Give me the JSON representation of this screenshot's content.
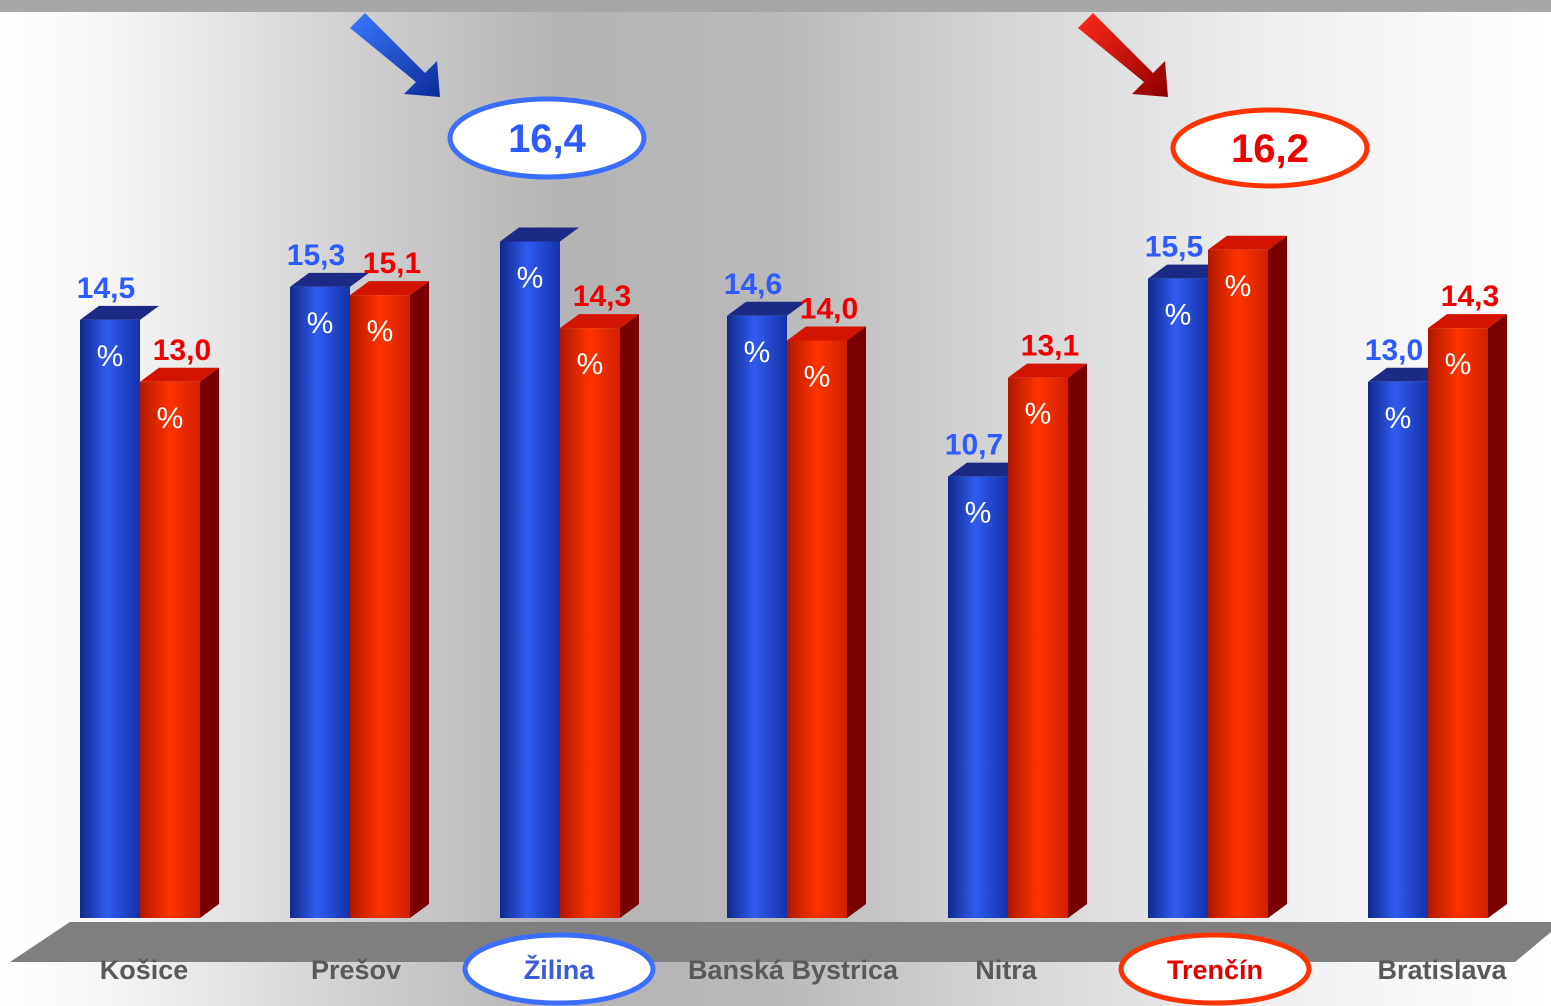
{
  "chart_data": {
    "type": "bar",
    "categories": [
      "Košice",
      "Prešov",
      "Žilina",
      "Banská Bystrica",
      "Nitra",
      "Trenčín",
      "Bratislava"
    ],
    "series": [
      {
        "values": [
          14.5,
          15.3,
          16.4,
          14.6,
          10.7,
          15.5,
          13.0
        ],
        "labels": [
          "14,5",
          "15,3",
          "16,4",
          "14,6",
          "10,7",
          "15,5",
          "13,0"
        ],
        "color": "#2546e0"
      },
      {
        "values": [
          13.0,
          15.1,
          14.3,
          14.0,
          13.1,
          16.2,
          14.3
        ],
        "labels": [
          "13,0",
          "15,1",
          "14,3",
          "14,0",
          "13,1",
          "16,2",
          "14,3"
        ],
        "color": "#ff3300"
      }
    ],
    "bar_symbol": "%",
    "highlighted": [
      {
        "category": "Žilina",
        "series": 0,
        "value_label": "16,4",
        "color": "#3366ff"
      },
      {
        "category": "Trenčín",
        "series": 1,
        "value_label": "16,2",
        "color": "#ff3300"
      }
    ],
    "style": "3d-bar",
    "grid": false,
    "legend": "none"
  }
}
